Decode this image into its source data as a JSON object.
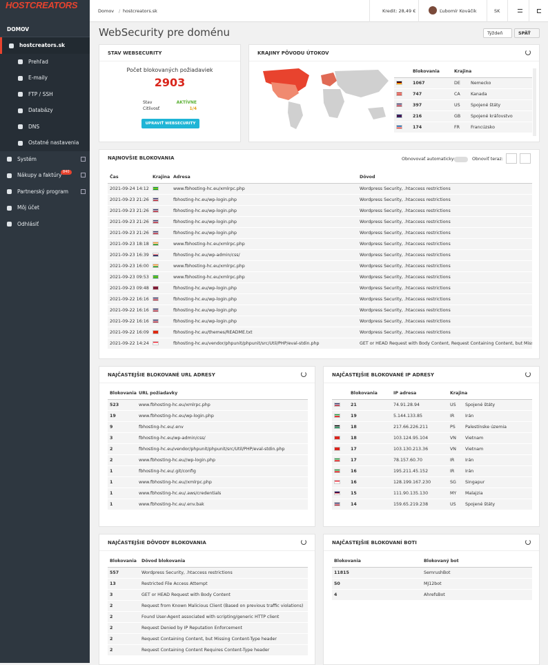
{
  "header": {
    "logo": "HOSTCREATORS",
    "breadcrumb": [
      "Domov",
      "hostcreators.sk"
    ],
    "credit": "Kredit: 28,49 €",
    "user": "Ľubomír Kováčik",
    "language": "SK"
  },
  "sidebar": {
    "section": "DOMOV",
    "domain": "hostcreators.sk",
    "subitems": [
      "Prehľad",
      "E-maily",
      "FTP / SSH",
      "Databázy",
      "DNS",
      "Ostatné nastavenia"
    ],
    "items": [
      {
        "label": "Systém"
      },
      {
        "label": "Nákupy a faktúry",
        "badge": 840
      },
      {
        "label": "Partnerský program"
      },
      {
        "label": "Môj účet"
      },
      {
        "label": "Odhlásiť"
      }
    ]
  },
  "page": {
    "title": "WebSecurity pre doménu",
    "period": "Týždeň",
    "back": "SPÄŤ"
  },
  "status": {
    "title": "STAV WEBSECURITY",
    "subtitle": "Počet blokovaných požiadaviek",
    "count": 2903,
    "rows": [
      [
        "Stav",
        "AKTÍVNE"
      ],
      [
        "Citlivosť",
        "1/4"
      ]
    ],
    "button": "UPRAVIŤ WEBSECURITY"
  },
  "countries": {
    "title": "KRAJINY PÔVODU ÚTOKOV",
    "columns": [
      "Blokovania",
      "Krajina"
    ],
    "rows": [
      {
        "flag": [
          "#000000",
          "#dd0000",
          "#ffce00"
        ],
        "count": 1067,
        "code": "DE",
        "name": "Nemecko"
      },
      {
        "flag": [
          "#d52b1e",
          "#ffffff",
          "#d52b1e"
        ],
        "count": 747,
        "code": "CA",
        "name": "Kanada"
      },
      {
        "flag": [
          "#3c3b6e",
          "#ffffff",
          "#b22234"
        ],
        "count": 397,
        "code": "US",
        "name": "Spojené štáty"
      },
      {
        "flag": [
          "#012169",
          "#c8102e",
          "#012169"
        ],
        "count": 216,
        "code": "GB",
        "name": "Spojené kráľovstvo"
      },
      {
        "flag": [
          "#0055a4",
          "#ffffff",
          "#ef4135"
        ],
        "count": 174,
        "code": "FR",
        "name": "Francúzsko"
      }
    ]
  },
  "recent": {
    "title": "NAJNOVŠIE BLOKOVANIA",
    "auto_refresh": "Obnovovať automaticky:",
    "refresh": "Obnoviť teraz:",
    "columns": [
      "Čas",
      "Krajina",
      "Adresa",
      "Dôvod"
    ],
    "rows": [
      {
        "time": "2021-09-24 14:12",
        "flag": [
          "#009c3b",
          "#ffdf00",
          "#009c3b"
        ],
        "address": "www.fbhosting-hc.eu/xmlrpc.php",
        "reason": "Wordpress Security, .htaccess restrictions"
      },
      {
        "time": "2021-09-23 21:26",
        "flag": [
          "#3c3b6e",
          "#ffffff",
          "#b22234"
        ],
        "address": "fbhosting-hc.eu/wp-login.php",
        "reason": "Wordpress Security, .htaccess restrictions"
      },
      {
        "time": "2021-09-23 21:26",
        "flag": [
          "#3c3b6e",
          "#ffffff",
          "#b22234"
        ],
        "address": "fbhosting-hc.eu/wp-login.php",
        "reason": "Wordpress Security, .htaccess restrictions"
      },
      {
        "time": "2021-09-23 21:26",
        "flag": [
          "#3c3b6e",
          "#ffffff",
          "#b22234"
        ],
        "address": "fbhosting-hc.eu/wp-login.php",
        "reason": "Wordpress Security, .htaccess restrictions"
      },
      {
        "time": "2021-09-23 21:26",
        "flag": [
          "#3c3b6e",
          "#ffffff",
          "#b22234"
        ],
        "address": "fbhosting-hc.eu/wp-login.php",
        "reason": "Wordpress Security, .htaccess restrictions"
      },
      {
        "time": "2021-09-23 18:18",
        "flag": [
          "#ff9933",
          "#ffffff",
          "#138808"
        ],
        "address": "www.fbhosting-hc.eu/xmlrpc.php",
        "reason": "Wordpress Security, .htaccess restrictions"
      },
      {
        "time": "2021-09-23 16:39",
        "flag": [
          "#ffffff",
          "#d7141a",
          "#11457e"
        ],
        "address": "fbhosting-hc.eu/wp-admin/css/",
        "reason": "Wordpress Security, .htaccess restrictions"
      },
      {
        "time": "2021-09-23 16:00",
        "flag": [
          "#ff9933",
          "#ffffff",
          "#138808"
        ],
        "address": "www.fbhosting-hc.eu/xmlrpc.php",
        "reason": "Wordpress Security, .htaccess restrictions"
      },
      {
        "time": "2021-09-23 09:53",
        "flag": [
          "#009c3b",
          "#ffdf00",
          "#009c3b"
        ],
        "address": "www.fbhosting-hc.eu/xmlrpc.php",
        "reason": "Wordpress Security, .htaccess restrictions"
      },
      {
        "time": "2021-09-23 09:48",
        "flag": [
          "#a51931",
          "#2d2a4a",
          "#a51931"
        ],
        "address": "fbhosting-hc.eu/wp-login.php",
        "reason": "Wordpress Security, .htaccess restrictions"
      },
      {
        "time": "2021-09-22 16:16",
        "flag": [
          "#3c3b6e",
          "#ffffff",
          "#b22234"
        ],
        "address": "fbhosting-hc.eu/wp-login.php",
        "reason": "Wordpress Security, .htaccess restrictions"
      },
      {
        "time": "2021-09-22 16:16",
        "flag": [
          "#3c3b6e",
          "#ffffff",
          "#b22234"
        ],
        "address": "fbhosting-hc.eu/wp-login.php",
        "reason": "Wordpress Security, .htaccess restrictions"
      },
      {
        "time": "2021-09-22 16:16",
        "flag": [
          "#3c3b6e",
          "#ffffff",
          "#b22234"
        ],
        "address": "fbhosting-hc.eu/wp-login.php",
        "reason": "Wordpress Security, .htaccess restrictions"
      },
      {
        "time": "2021-09-22 16:09",
        "flag": [
          "#de2910",
          "#de2910",
          "#de2910"
        ],
        "address": "fbhosting-hc.eu/themes/README.txt",
        "reason": "Wordpress Security, .htaccess restrictions"
      },
      {
        "time": "2021-09-22 14:24",
        "flag": [
          "#ef3340",
          "#ffffff",
          "#ffffff"
        ],
        "address": "fbhosting-hc.eu/vendor/phpunit/phpunit/src/Util/PHP/eval-stdin.php",
        "reason": "GET or HEAD Request with Body Content, Request Containing Content, but Missing..."
      }
    ]
  },
  "urls": {
    "title": "NAJČASTEJŠIE BLOKOVANÉ URL ADRESY",
    "columns": [
      "Blokovania",
      "URL požiadavky"
    ],
    "rows": [
      {
        "count": 523,
        "url": "www.fbhosting-hc.eu/xmlrpc.php"
      },
      {
        "count": 19,
        "url": "www.fbhosting-hc.eu/wp-login.php"
      },
      {
        "count": 9,
        "url": "fbhosting-hc.eu/.env"
      },
      {
        "count": 3,
        "url": "fbhosting-hc.eu/wp-admin/css/"
      },
      {
        "count": 2,
        "url": "fbhosting-hc.eu/vendor/phpunit/phpunit/src/Util/PHP/eval-stdin.php"
      },
      {
        "count": 2,
        "url": "www.fbhosting-hc.eu//wp-login.php"
      },
      {
        "count": 1,
        "url": "fbhosting-hc.eu/.git/config"
      },
      {
        "count": 1,
        "url": "www.fbhosting-hc.eu//xmlrpc.php"
      },
      {
        "count": 1,
        "url": "www.fbhosting-hc.eu/.aws/credentials"
      },
      {
        "count": 1,
        "url": "www.fbhosting-hc.eu/.env.bak"
      }
    ]
  },
  "ips": {
    "title": "NAJČASTEJŠIE BLOKOVANÉ IP ADRESY",
    "columns": [
      "Blokovania",
      "IP adresa",
      "Krajina"
    ],
    "rows": [
      {
        "flag": [
          "#3c3b6e",
          "#ffffff",
          "#b22234"
        ],
        "count": 21,
        "ip": "74.91.28.94",
        "code": "US",
        "name": "Spojené štáty"
      },
      {
        "flag": [
          "#239f40",
          "#ffffff",
          "#da0000"
        ],
        "count": 19,
        "ip": "5.144.133.85",
        "code": "IR",
        "name": "Irán"
      },
      {
        "flag": [
          "#000000",
          "#ffffff",
          "#007a3d"
        ],
        "count": 18,
        "ip": "217.66.226.211",
        "code": "PS",
        "name": "Palestínske územia"
      },
      {
        "flag": [
          "#da251d",
          "#da251d",
          "#da251d"
        ],
        "count": 18,
        "ip": "103.124.95.104",
        "code": "VN",
        "name": "Vietnam"
      },
      {
        "flag": [
          "#da251d",
          "#da251d",
          "#da251d"
        ],
        "count": 17,
        "ip": "103.130.213.36",
        "code": "VN",
        "name": "Vietnam"
      },
      {
        "flag": [
          "#239f40",
          "#ffffff",
          "#da0000"
        ],
        "count": 17,
        "ip": "78.157.60.70",
        "code": "IR",
        "name": "Irán"
      },
      {
        "flag": [
          "#239f40",
          "#ffffff",
          "#da0000"
        ],
        "count": 16,
        "ip": "195.211.45.152",
        "code": "IR",
        "name": "Irán"
      },
      {
        "flag": [
          "#ef3340",
          "#ffffff",
          "#ffffff"
        ],
        "count": 16,
        "ip": "128.199.167.230",
        "code": "SG",
        "name": "Singapur"
      },
      {
        "flag": [
          "#010066",
          "#cc0001",
          "#ffffff"
        ],
        "count": 15,
        "ip": "111.90.135.130",
        "code": "MY",
        "name": "Malajzia"
      },
      {
        "flag": [
          "#3c3b6e",
          "#ffffff",
          "#b22234"
        ],
        "count": 14,
        "ip": "159.65.219.238",
        "code": "US",
        "name": "Spojené štáty"
      }
    ]
  },
  "reasons": {
    "title": "NAJČASTEJŠIE DÔVODY BLOKOVANIA",
    "columns": [
      "Blokovania",
      "Dôvod blokovania"
    ],
    "rows": [
      {
        "count": 557,
        "reason": "Wordpress Security, .htaccess restrictions"
      },
      {
        "count": 13,
        "reason": "Restricted File Access Attempt"
      },
      {
        "count": 3,
        "reason": "GET or HEAD Request with Body Content"
      },
      {
        "count": 2,
        "reason": "Request from Known Malicious Client (Based on previous traffic violations)"
      },
      {
        "count": 2,
        "reason": "Found User-Agent associated with scripting/generic HTTP client"
      },
      {
        "count": 2,
        "reason": "Request Denied by IP Reputation Enforcement"
      },
      {
        "count": 2,
        "reason": "Request Containing Content, but Missing Content-Type header"
      },
      {
        "count": 2,
        "reason": "Request Containing Content Requires Content-Type header"
      }
    ]
  },
  "bots": {
    "title": "NAJČASTEJŠIE BLOKOVANÍ BOTI",
    "columns": [
      "Blokovania",
      "Blokovaný bot"
    ],
    "rows": [
      {
        "count": 11815,
        "bot": "SemrushBot"
      },
      {
        "count": 50,
        "bot": "MJ12bot"
      },
      {
        "count": 4,
        "bot": "AhrefsBot"
      }
    ]
  }
}
